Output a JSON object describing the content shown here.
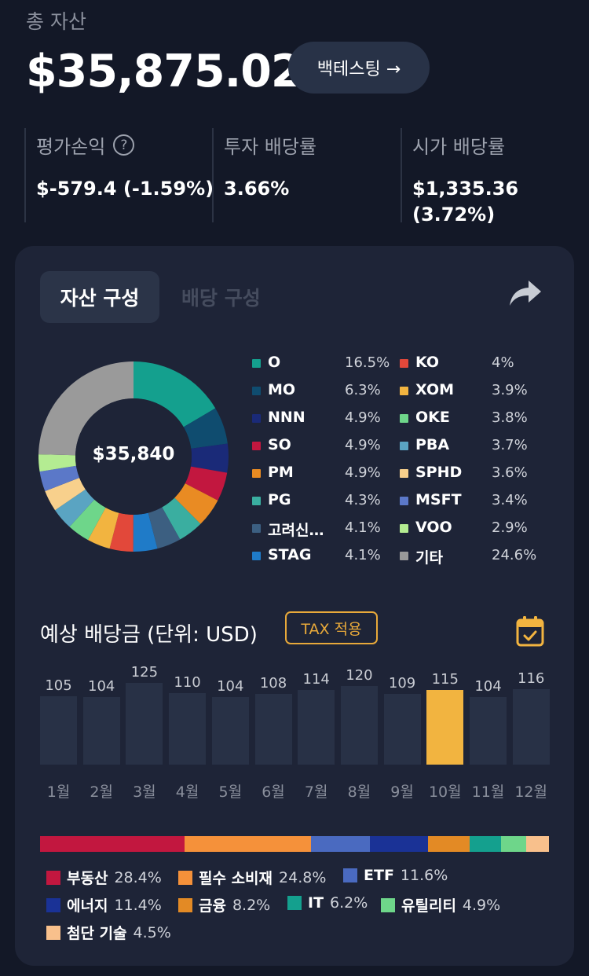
{
  "summary": {
    "total_label": "총 자산",
    "total_value": "$35,875.02",
    "backtest_label": "백테스팅 →"
  },
  "stats": [
    {
      "label": "평가손익",
      "value": "$-579.4 (-1.59%)",
      "has_help": true
    },
    {
      "label": "투자 배당률",
      "value": "3.66%",
      "has_help": false
    },
    {
      "label": "시가 배당률",
      "value_line1": "$1,335.36",
      "value_line2": "(3.72%)",
      "has_help": false
    }
  ],
  "tabs": {
    "active": "자산 구성",
    "inactive": "배당 구성"
  },
  "icons": {
    "help": "question-circle-icon",
    "share": "share-arrow-icon",
    "calendar": "calendar-check-icon"
  },
  "allocation": {
    "center_value": "$35,840",
    "holdings": [
      {
        "name": "O",
        "pct": "16.5%",
        "value": 16.5,
        "color": "#14a08e"
      },
      {
        "name": "MO",
        "pct": "6.3%",
        "value": 6.3,
        "color": "#0f4c6f"
      },
      {
        "name": "NNN",
        "pct": "4.9%",
        "value": 4.9,
        "color": "#1a2a78"
      },
      {
        "name": "SO",
        "pct": "4.9%",
        "value": 4.9,
        "color": "#c2173f"
      },
      {
        "name": "PM",
        "pct": "4.9%",
        "value": 4.9,
        "color": "#e98b23"
      },
      {
        "name": "PG",
        "pct": "4.3%",
        "value": 4.3,
        "color": "#3aaea0"
      },
      {
        "name": "고려신용정보",
        "pct": "4.1%",
        "value": 4.1,
        "color": "#3c5f81"
      },
      {
        "name": "STAG",
        "pct": "4.1%",
        "value": 4.1,
        "color": "#1f7bc8"
      },
      {
        "name": "KO",
        "pct": "4%",
        "value": 4.0,
        "color": "#e2483a"
      },
      {
        "name": "XOM",
        "pct": "3.9%",
        "value": 3.9,
        "color": "#f2b440"
      },
      {
        "name": "OKE",
        "pct": "3.8%",
        "value": 3.8,
        "color": "#6ed68a"
      },
      {
        "name": "PBA",
        "pct": "3.7%",
        "value": 3.7,
        "color": "#5aa4c2"
      },
      {
        "name": "SPHD",
        "pct": "3.6%",
        "value": 3.6,
        "color": "#f8d08c"
      },
      {
        "name": "MSFT",
        "pct": "3.4%",
        "value": 3.4,
        "color": "#5b78c8"
      },
      {
        "name": "VOO",
        "pct": "2.9%",
        "value": 2.9,
        "color": "#b4ec92"
      },
      {
        "name": "기타",
        "pct": "24.6%",
        "value": 24.6,
        "color": "#9a9a9a"
      }
    ]
  },
  "dividends": {
    "title": "예상 배당금 (단위: USD)",
    "tax_label": "TAX 적용",
    "highlight_index": 9,
    "highlight_color": "#f2b440"
  },
  "chart_data": {
    "type": "bar",
    "categories": [
      "1월",
      "2월",
      "3월",
      "4월",
      "5월",
      "6월",
      "7월",
      "8월",
      "9월",
      "10월",
      "11월",
      "12월"
    ],
    "values": [
      105,
      104,
      125,
      110,
      104,
      108,
      114,
      120,
      109,
      115,
      104,
      116
    ],
    "title": "예상 배당금 (단위: USD)",
    "xlabel": "",
    "ylabel": ""
  },
  "sectors": [
    {
      "name": "부동산",
      "pct": "28.4%",
      "value": 28.4,
      "color": "#c2173f"
    },
    {
      "name": "필수 소비재",
      "pct": "24.8%",
      "value": 24.8,
      "color": "#f5913a"
    },
    {
      "name": "ETF",
      "pct": "11.6%",
      "value": 11.6,
      "color": "#4a6ac0"
    },
    {
      "name": "에너지",
      "pct": "11.4%",
      "value": 11.4,
      "color": "#1a3296"
    },
    {
      "name": "금융",
      "pct": "8.2%",
      "value": 8.2,
      "color": "#e38a25"
    },
    {
      "name": "IT",
      "pct": "6.2%",
      "value": 6.2,
      "color": "#14a08e"
    },
    {
      "name": "유틸리티",
      "pct": "4.9%",
      "value": 4.9,
      "color": "#6ed68a"
    },
    {
      "name": "첨단 기술",
      "pct": "4.5%",
      "value": 4.5,
      "color": "#f8c08c"
    }
  ]
}
